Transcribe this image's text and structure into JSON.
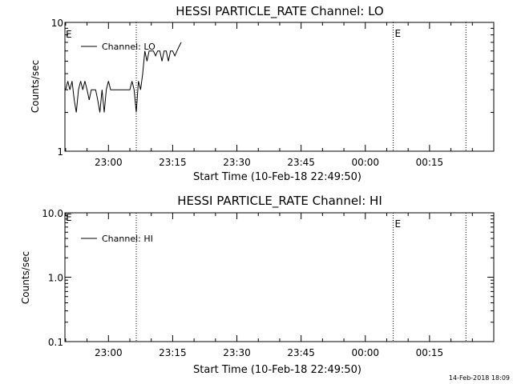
{
  "footer_timestamp": "14-Feb-2018 18:09",
  "chart_data": [
    {
      "type": "line",
      "title": "HESSI PARTICLE_RATE Channel: LO",
      "xlabel": "Start Time (10-Feb-18 22:49:50)",
      "ylabel": "Counts/sec",
      "y_scale": "log",
      "ylim": [
        1,
        10
      ],
      "y_ticks": [
        "10",
        "1"
      ],
      "x_ticks": [
        "23:00",
        "23:15",
        "23:30",
        "23:45",
        "00:00",
        "00:15"
      ],
      "xlim": [
        "22:49:50",
        "00:30:00"
      ],
      "event_markers": [
        {
          "time": "23:06:30",
          "label": ""
        },
        {
          "time": "00:06:30",
          "label": "E"
        },
        {
          "time": "00:23:30",
          "label": ""
        }
      ],
      "corner_label": "E",
      "legend": {
        "label": "Channel: LO",
        "placement": "top-left"
      },
      "series": [
        {
          "name": "Channel: LO",
          "x": [
            "22:50:00",
            "22:50:30",
            "22:51:00",
            "22:51:30",
            "22:52:00",
            "22:52:30",
            "22:53:00",
            "22:53:30",
            "22:54:00",
            "22:54:30",
            "22:55:00",
            "22:55:30",
            "22:56:00",
            "22:56:30",
            "22:57:00",
            "22:57:30",
            "22:58:00",
            "22:58:30",
            "22:59:00",
            "22:59:30",
            "23:00:00",
            "23:00:30",
            "23:01:00",
            "23:01:30",
            "23:02:00",
            "23:02:30",
            "23:03:00",
            "23:03:30",
            "23:04:00",
            "23:04:30",
            "23:05:00",
            "23:05:30",
            "23:06:00",
            "23:06:30",
            "23:07:00",
            "23:07:30",
            "23:08:00",
            "23:08:30",
            "23:09:00",
            "23:09:30",
            "23:10:00",
            "23:10:30",
            "23:11:00",
            "23:11:30",
            "23:12:00",
            "23:12:30",
            "23:13:00",
            "23:13:30",
            "23:14:00",
            "23:14:30",
            "23:15:00",
            "23:15:30",
            "23:16:00",
            "23:16:30",
            "23:17:00"
          ],
          "values": [
            3.0,
            3.5,
            3.0,
            3.5,
            2.5,
            2.0,
            3.0,
            3.5,
            3.0,
            3.5,
            3.0,
            2.5,
            3.0,
            3.0,
            3.0,
            2.5,
            2.0,
            3.0,
            2.0,
            3.0,
            3.5,
            3.0,
            3.0,
            3.0,
            3.0,
            3.0,
            3.0,
            3.0,
            3.0,
            3.0,
            3.0,
            3.5,
            3.0,
            2.0,
            3.5,
            3.0,
            4.0,
            6.0,
            5.0,
            6.0,
            6.0,
            6.0,
            5.5,
            6.0,
            6.0,
            5.0,
            6.0,
            6.0,
            5.0,
            6.0,
            6.0,
            5.5,
            6.0,
            6.5,
            7.0
          ]
        }
      ]
    },
    {
      "type": "line",
      "title": "HESSI PARTICLE_RATE Channel: HI",
      "xlabel": "Start Time (10-Feb-18 22:49:50)",
      "ylabel": "Counts/sec",
      "y_scale": "log",
      "ylim": [
        0.1,
        10
      ],
      "y_ticks": [
        "10.0",
        "1.0",
        "0.1"
      ],
      "x_ticks": [
        "23:00",
        "23:15",
        "23:30",
        "23:45",
        "00:00",
        "00:15"
      ],
      "xlim": [
        "22:49:50",
        "00:30:00"
      ],
      "event_markers": [
        {
          "time": "23:06:30",
          "label": ""
        },
        {
          "time": "00:06:30",
          "label": "E"
        },
        {
          "time": "00:23:30",
          "label": ""
        }
      ],
      "corner_label": "E",
      "legend": {
        "label": "Channel: HI",
        "placement": "top-left"
      },
      "series": [
        {
          "name": "Channel: HI",
          "x": [],
          "values": []
        }
      ]
    }
  ]
}
